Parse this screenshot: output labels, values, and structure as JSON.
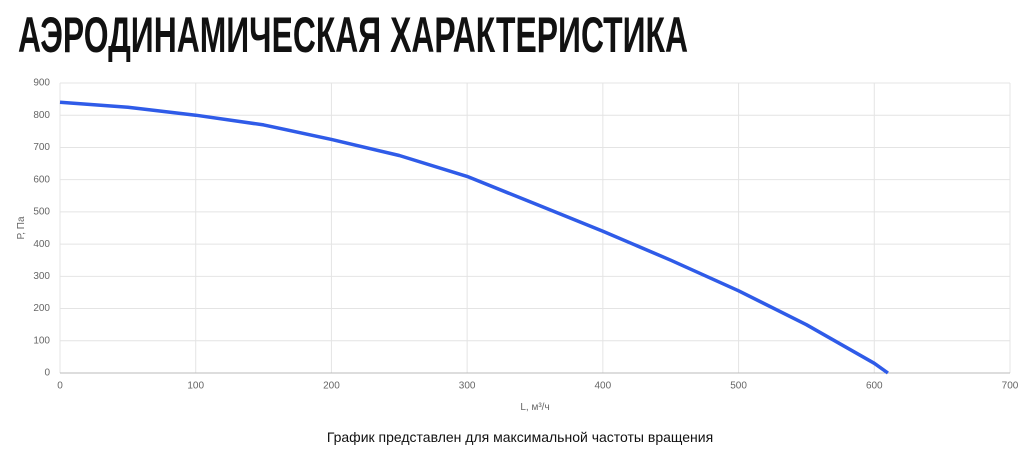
{
  "chart_data": {
    "type": "line",
    "title": "АЭРОДИНАМИЧЕСКАЯ ХАРАКТЕРИСТИКА",
    "x_label": "L, м³/ч",
    "y_label": "Р, Па",
    "annotation": "График представлен для максимальной частоты вращения",
    "x": [
      0,
      50,
      100,
      150,
      200,
      250,
      300,
      350,
      400,
      450,
      500,
      550,
      600,
      610
    ],
    "values": [
      840,
      825,
      800,
      770,
      725,
      675,
      610,
      525,
      440,
      350,
      255,
      150,
      30,
      0
    ],
    "color": "#2f5be8",
    "xlim": [
      0,
      700
    ],
    "xticks": [
      0,
      100,
      200,
      300,
      400,
      500,
      600,
      700
    ],
    "ylim": [
      0,
      900
    ],
    "yticks": [
      0,
      100,
      200,
      300,
      400,
      500,
      600,
      700,
      800,
      900
    ],
    "grid": true
  }
}
